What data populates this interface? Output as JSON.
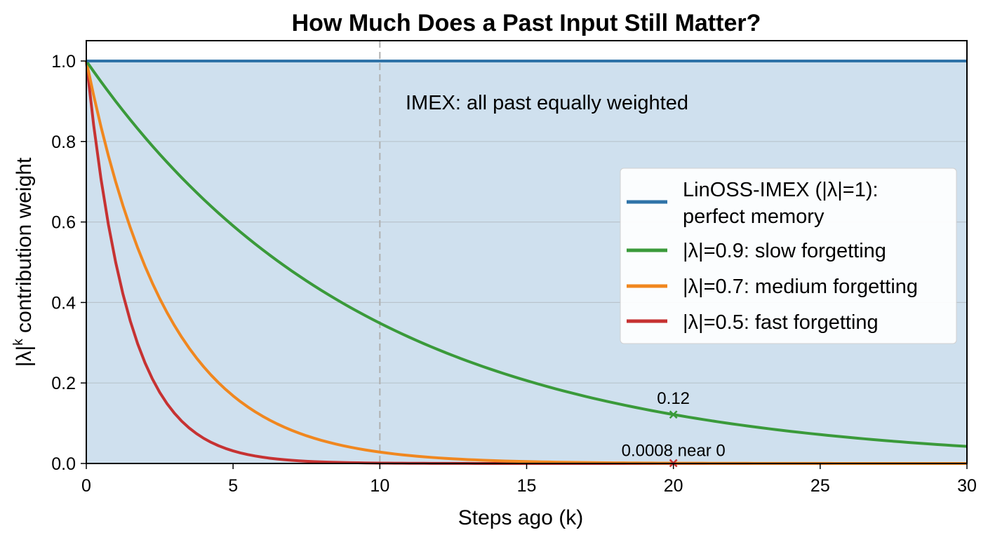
{
  "chart_data": {
    "type": "line",
    "title": "How Much Does a Past Input Still Matter?",
    "xlabel": "Steps ago (k)",
    "ylabel_base": "|λ|",
    "ylabel_sup": "k",
    "ylabel_rest": " contribution weight",
    "xlim": [
      0,
      30
    ],
    "ylim": [
      0,
      1.05
    ],
    "xticks": [
      0,
      5,
      10,
      15,
      20,
      25,
      30
    ],
    "xtick_labels": [
      "0",
      "5",
      "10",
      "15",
      "20",
      "25",
      "30"
    ],
    "yticks": [
      0.0,
      0.2,
      0.4,
      0.6,
      0.8,
      1.0
    ],
    "ytick_labels": [
      "0.0",
      "0.2",
      "0.4",
      "0.6",
      "0.8",
      "1.0"
    ],
    "grid": "horizontal",
    "shaded_region": {
      "y_from": 0,
      "y_to": 1.0,
      "color": "#cfe0ee"
    },
    "vline": {
      "x": 10,
      "style": "dashed",
      "color": "#b0b0b0"
    },
    "inplot_text": "IMEX: all past equally weighted",
    "series": [
      {
        "name": "LinOSS-IMEX (|λ|=1):",
        "name_line2": "perfect memory",
        "lambda": 1.0,
        "color": "#2f73a8"
      },
      {
        "name": "|λ|=0.9: slow forgetting",
        "lambda": 0.9,
        "color": "#3a9a3a"
      },
      {
        "name": "|λ|=0.7: medium forgetting",
        "lambda": 0.7,
        "color": "#f0871f"
      },
      {
        "name": "|λ|=0.5: fast forgetting",
        "lambda": 0.5,
        "color": "#c63232"
      }
    ],
    "x_range_points": {
      "start": 0,
      "end": 30,
      "step": 0.25
    },
    "annotations": [
      {
        "text": "0.12",
        "x": 20,
        "y": 0.1216,
        "series": 1,
        "marker": "x"
      },
      {
        "text": "0.0008 near 0",
        "x": 20,
        "y": 0.0008,
        "series": 2,
        "marker": "x"
      }
    ],
    "legend_position": "center-right"
  }
}
